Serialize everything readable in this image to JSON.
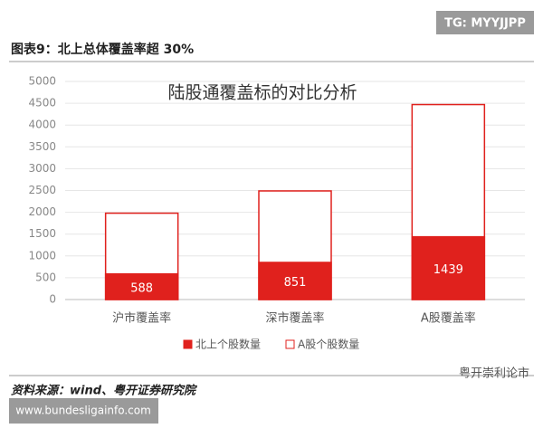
{
  "badge": "TG: MYYJJPP",
  "figure_title": "图表9：北上总体覆盖率超 30%",
  "source": "资料来源：wind、粤开证券研究院",
  "watermark": "粤开崇利论市",
  "website": "www.bundesligainfo.com",
  "chart_data": {
    "type": "bar",
    "barmode": "overlay",
    "title": "陆股通覆盖标的对比分析",
    "categories": [
      "沪市覆盖率",
      "深市覆盖率",
      "A股覆盖率"
    ],
    "series": [
      {
        "name": "北上个股数量",
        "color": "#e0211d",
        "edgecolor": "#e0211d",
        "values": [
          588,
          851,
          1439
        ],
        "data_labels": true
      },
      {
        "name": "A股个股数量",
        "color": "#ffffff",
        "edgecolor": "#e0211d",
        "values": [
          1980,
          2490,
          4470
        ],
        "data_labels": false
      }
    ],
    "ylim": [
      0,
      5000
    ],
    "yticks": [
      0,
      500,
      1000,
      1500,
      2000,
      2500,
      3000,
      3500,
      4000,
      4500,
      5000
    ],
    "grid": true,
    "legend": "bottom"
  }
}
